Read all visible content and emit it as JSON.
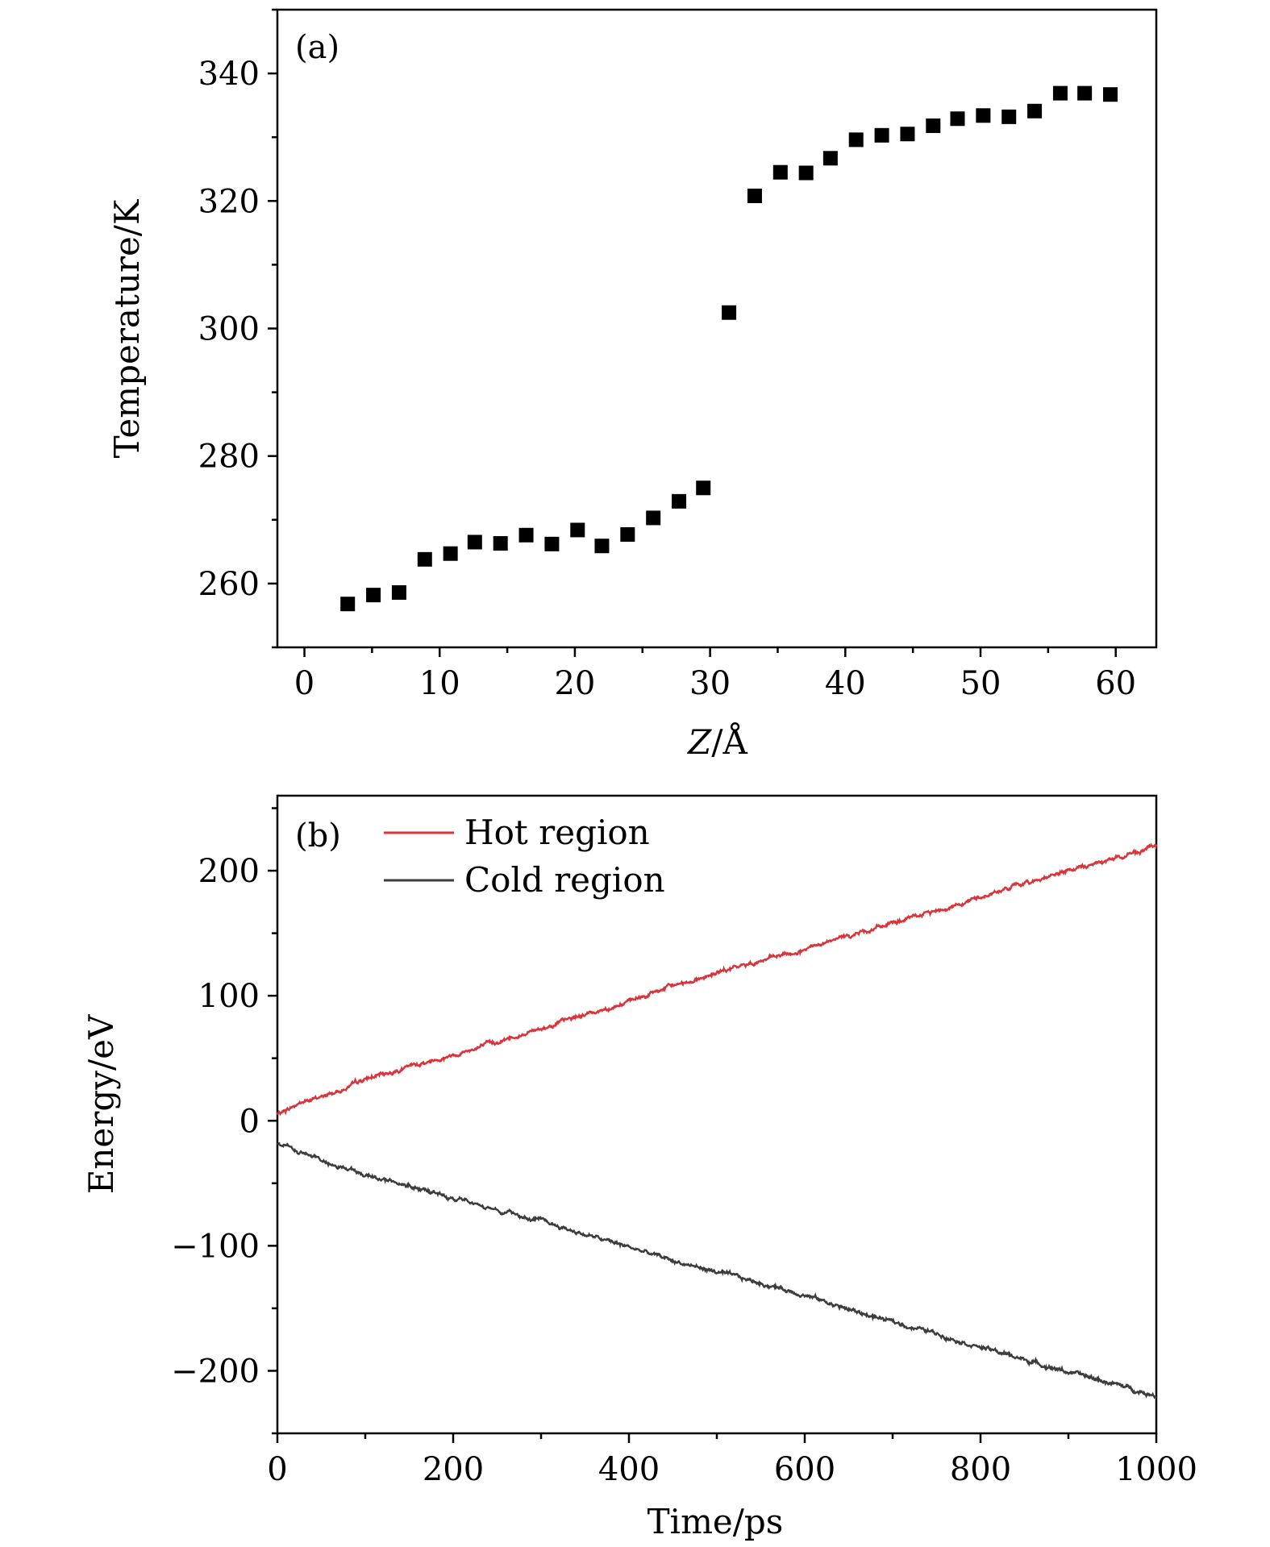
{
  "chart_data": [
    {
      "type": "scatter",
      "panel_label": "(a)",
      "xlabel_main": "Z",
      "xlabel_unit": "/Å",
      "ylabel": "Temperature/K",
      "xlim": [
        -2,
        63
      ],
      "ylim": [
        250,
        350
      ],
      "xticks": [
        0,
        10,
        20,
        30,
        40,
        50,
        60
      ],
      "xtick_labels": [
        "0",
        "10",
        "20",
        "30",
        "40",
        "50",
        "60"
      ],
      "xminor": [
        5,
        15,
        25,
        35,
        45,
        55
      ],
      "yticks": [
        260,
        280,
        300,
        320,
        340
      ],
      "ytick_labels": [
        "260",
        "280",
        "300",
        "320",
        "340"
      ],
      "yminor": [
        250,
        270,
        290,
        310,
        330,
        350
      ],
      "marker_color": "#000000",
      "series": [
        {
          "name": "Temperature",
          "x": [
            3.2,
            5.1,
            7.0,
            8.9,
            10.8,
            12.6,
            14.5,
            16.4,
            18.3,
            20.2,
            22.0,
            23.9,
            25.8,
            27.7,
            29.5,
            31.4,
            33.3,
            35.2,
            37.1,
            38.9,
            40.8,
            42.7,
            44.6,
            46.5,
            48.3,
            50.2,
            52.1,
            54.0,
            55.9,
            57.7,
            59.6
          ],
          "y": [
            256.8,
            258.2,
            258.6,
            263.8,
            264.7,
            266.5,
            266.3,
            267.6,
            266.2,
            268.4,
            265.9,
            267.7,
            270.3,
            272.9,
            275.0,
            302.5,
            320.8,
            324.5,
            324.4,
            326.7,
            329.6,
            330.3,
            330.5,
            331.8,
            332.9,
            333.4,
            333.2,
            334.1,
            336.9,
            336.9,
            336.7
          ]
        }
      ]
    },
    {
      "type": "line",
      "panel_label": "(b)",
      "xlabel": "Time/ps",
      "ylabel": "Energy/eV",
      "xlim": [
        0,
        1000
      ],
      "ylim": [
        -250,
        260
      ],
      "xticks": [
        0,
        200,
        400,
        600,
        800,
        1000
      ],
      "xtick_labels": [
        "0",
        "200",
        "400",
        "600",
        "800",
        "1000"
      ],
      "xminor": [
        100,
        300,
        500,
        700,
        900
      ],
      "yticks": [
        -200,
        -100,
        0,
        100,
        200
      ],
      "ytick_labels": [
        "−200",
        "−100",
        "0",
        "100",
        "200"
      ],
      "yminor": [
        -250,
        -150,
        -50,
        50,
        150,
        250
      ],
      "legend_position": "top-left",
      "series": [
        {
          "name": "Hot region",
          "color": "#d9343a",
          "x": [
            0,
            25,
            50,
            75,
            100,
            150,
            200,
            250,
            300,
            350,
            400,
            450,
            500,
            550,
            600,
            650,
            700,
            750,
            800,
            850,
            900,
            950,
            1000
          ],
          "y": [
            5,
            14,
            19,
            25,
            33,
            43,
            53,
            63,
            74,
            85,
            95,
            108,
            118,
            128,
            136,
            148,
            158,
            168,
            179,
            190,
            200,
            209,
            220
          ]
        },
        {
          "name": "Cold region",
          "color": "#3c3c3c",
          "x": [
            0,
            25,
            50,
            75,
            100,
            150,
            200,
            250,
            300,
            350,
            400,
            450,
            500,
            550,
            600,
            650,
            700,
            750,
            800,
            850,
            900,
            950,
            1000
          ],
          "y": [
            -18,
            -26,
            -32,
            -38,
            -43,
            -52,
            -62,
            -71,
            -80,
            -91,
            -101,
            -112,
            -121,
            -130,
            -139,
            -151,
            -161,
            -170,
            -181,
            -191,
            -201,
            -210,
            -220
          ]
        }
      ]
    }
  ]
}
